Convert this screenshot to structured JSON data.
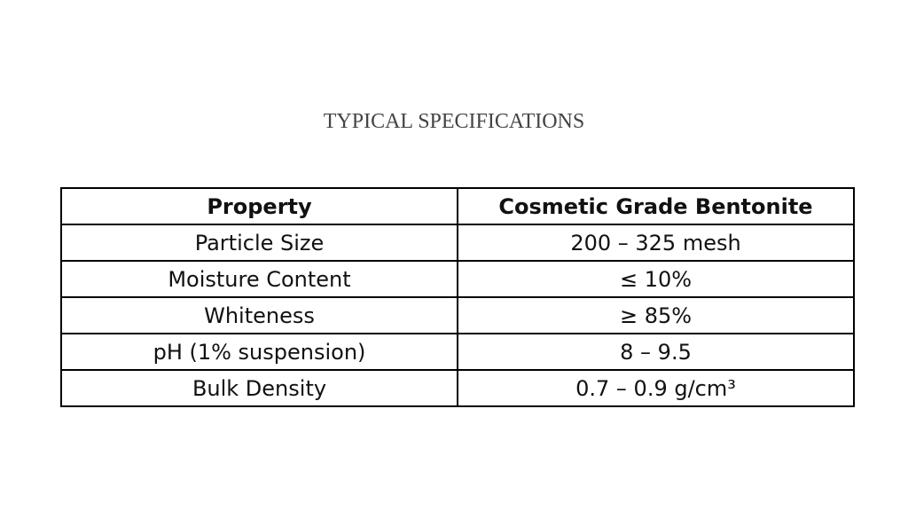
{
  "header": {
    "title": "TYPICAL SPECIFICATIONS"
  },
  "table": {
    "columns": [
      "Property",
      "Cosmetic Grade Bentonite"
    ],
    "rows": [
      [
        "Particle Size",
        "200 – 325 mesh"
      ],
      [
        "Moisture Content",
        "≤ 10%"
      ],
      [
        "Whiteness",
        "≥ 85%"
      ],
      [
        "pH (1% suspension)",
        "8 – 9.5"
      ],
      [
        "Bulk Density",
        "0.7 – 0.9 g/cm³"
      ]
    ]
  }
}
